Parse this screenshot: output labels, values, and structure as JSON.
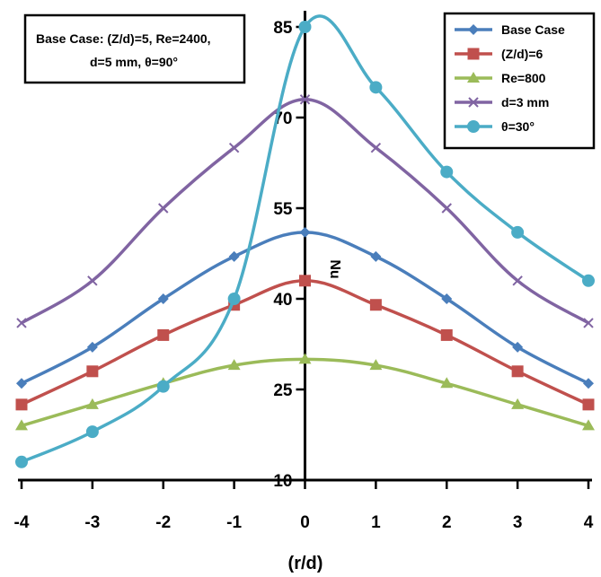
{
  "chart_data": {
    "type": "line",
    "title": "",
    "xlabel": "(r/d)",
    "ylabel": "Nu",
    "xlim": [
      -4,
      4
    ],
    "ylim": [
      10,
      85
    ],
    "x_ticks": [
      "-4",
      "-3",
      "-2",
      "-1",
      "0",
      "1",
      "2",
      "3",
      "4"
    ],
    "y_ticks": [
      "10",
      "25",
      "40",
      "55",
      "70",
      "85"
    ],
    "grid": false,
    "legend_position": "top-right",
    "annotation": [
      "Base Case: (Z/d)=5, Re=2400,",
      "d=5 mm, θ=90°"
    ],
    "x": [
      -4,
      -3,
      -2,
      -1,
      0,
      1,
      2,
      3,
      4
    ],
    "series": [
      {
        "name": "Base Case",
        "color": "#4a7ebb",
        "marker": "diamond",
        "values": [
          26,
          32,
          40,
          47,
          51,
          47,
          40,
          32,
          26
        ]
      },
      {
        "name": "(Z/d)=6",
        "color": "#c0504d",
        "marker": "square",
        "values": [
          22.5,
          28,
          34,
          39,
          43,
          39,
          34,
          28,
          22.5
        ]
      },
      {
        "name": "Re=800",
        "color": "#9bbb59",
        "marker": "triangle",
        "values": [
          19,
          22.5,
          26,
          29,
          30,
          29,
          26,
          22.5,
          19
        ]
      },
      {
        "name": "d=3 mm",
        "color": "#8064a2",
        "marker": "x",
        "values": [
          36,
          43,
          55,
          65,
          73,
          65,
          55,
          43,
          36
        ]
      },
      {
        "name": "θ=30°",
        "color": "#4bacc6",
        "marker": "circle",
        "values": [
          13,
          18,
          25.5,
          40,
          85,
          75,
          61,
          51,
          43
        ]
      }
    ]
  }
}
